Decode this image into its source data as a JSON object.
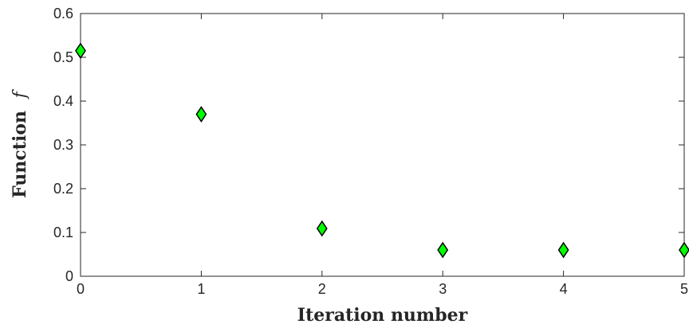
{
  "chart_data": {
    "type": "scatter",
    "title": "",
    "xlabel": "Iteration number",
    "ylabel_text": "Function",
    "ylabel_symbol": "f",
    "xlim": [
      0,
      5
    ],
    "ylim": [
      0,
      0.6
    ],
    "xticks": [
      "0",
      "1",
      "2",
      "3",
      "4",
      "5"
    ],
    "yticks": [
      "0",
      "0.1",
      "0.2",
      "0.3",
      "0.4",
      "0.5",
      "0.6"
    ],
    "grid": false,
    "marker": "diamond",
    "marker_color": "#00ff00",
    "marker_edge_color": "#000000",
    "x": [
      0,
      1,
      2,
      3,
      4,
      5
    ],
    "y": [
      0.515,
      0.37,
      0.109,
      0.06,
      0.06,
      0.06
    ]
  }
}
